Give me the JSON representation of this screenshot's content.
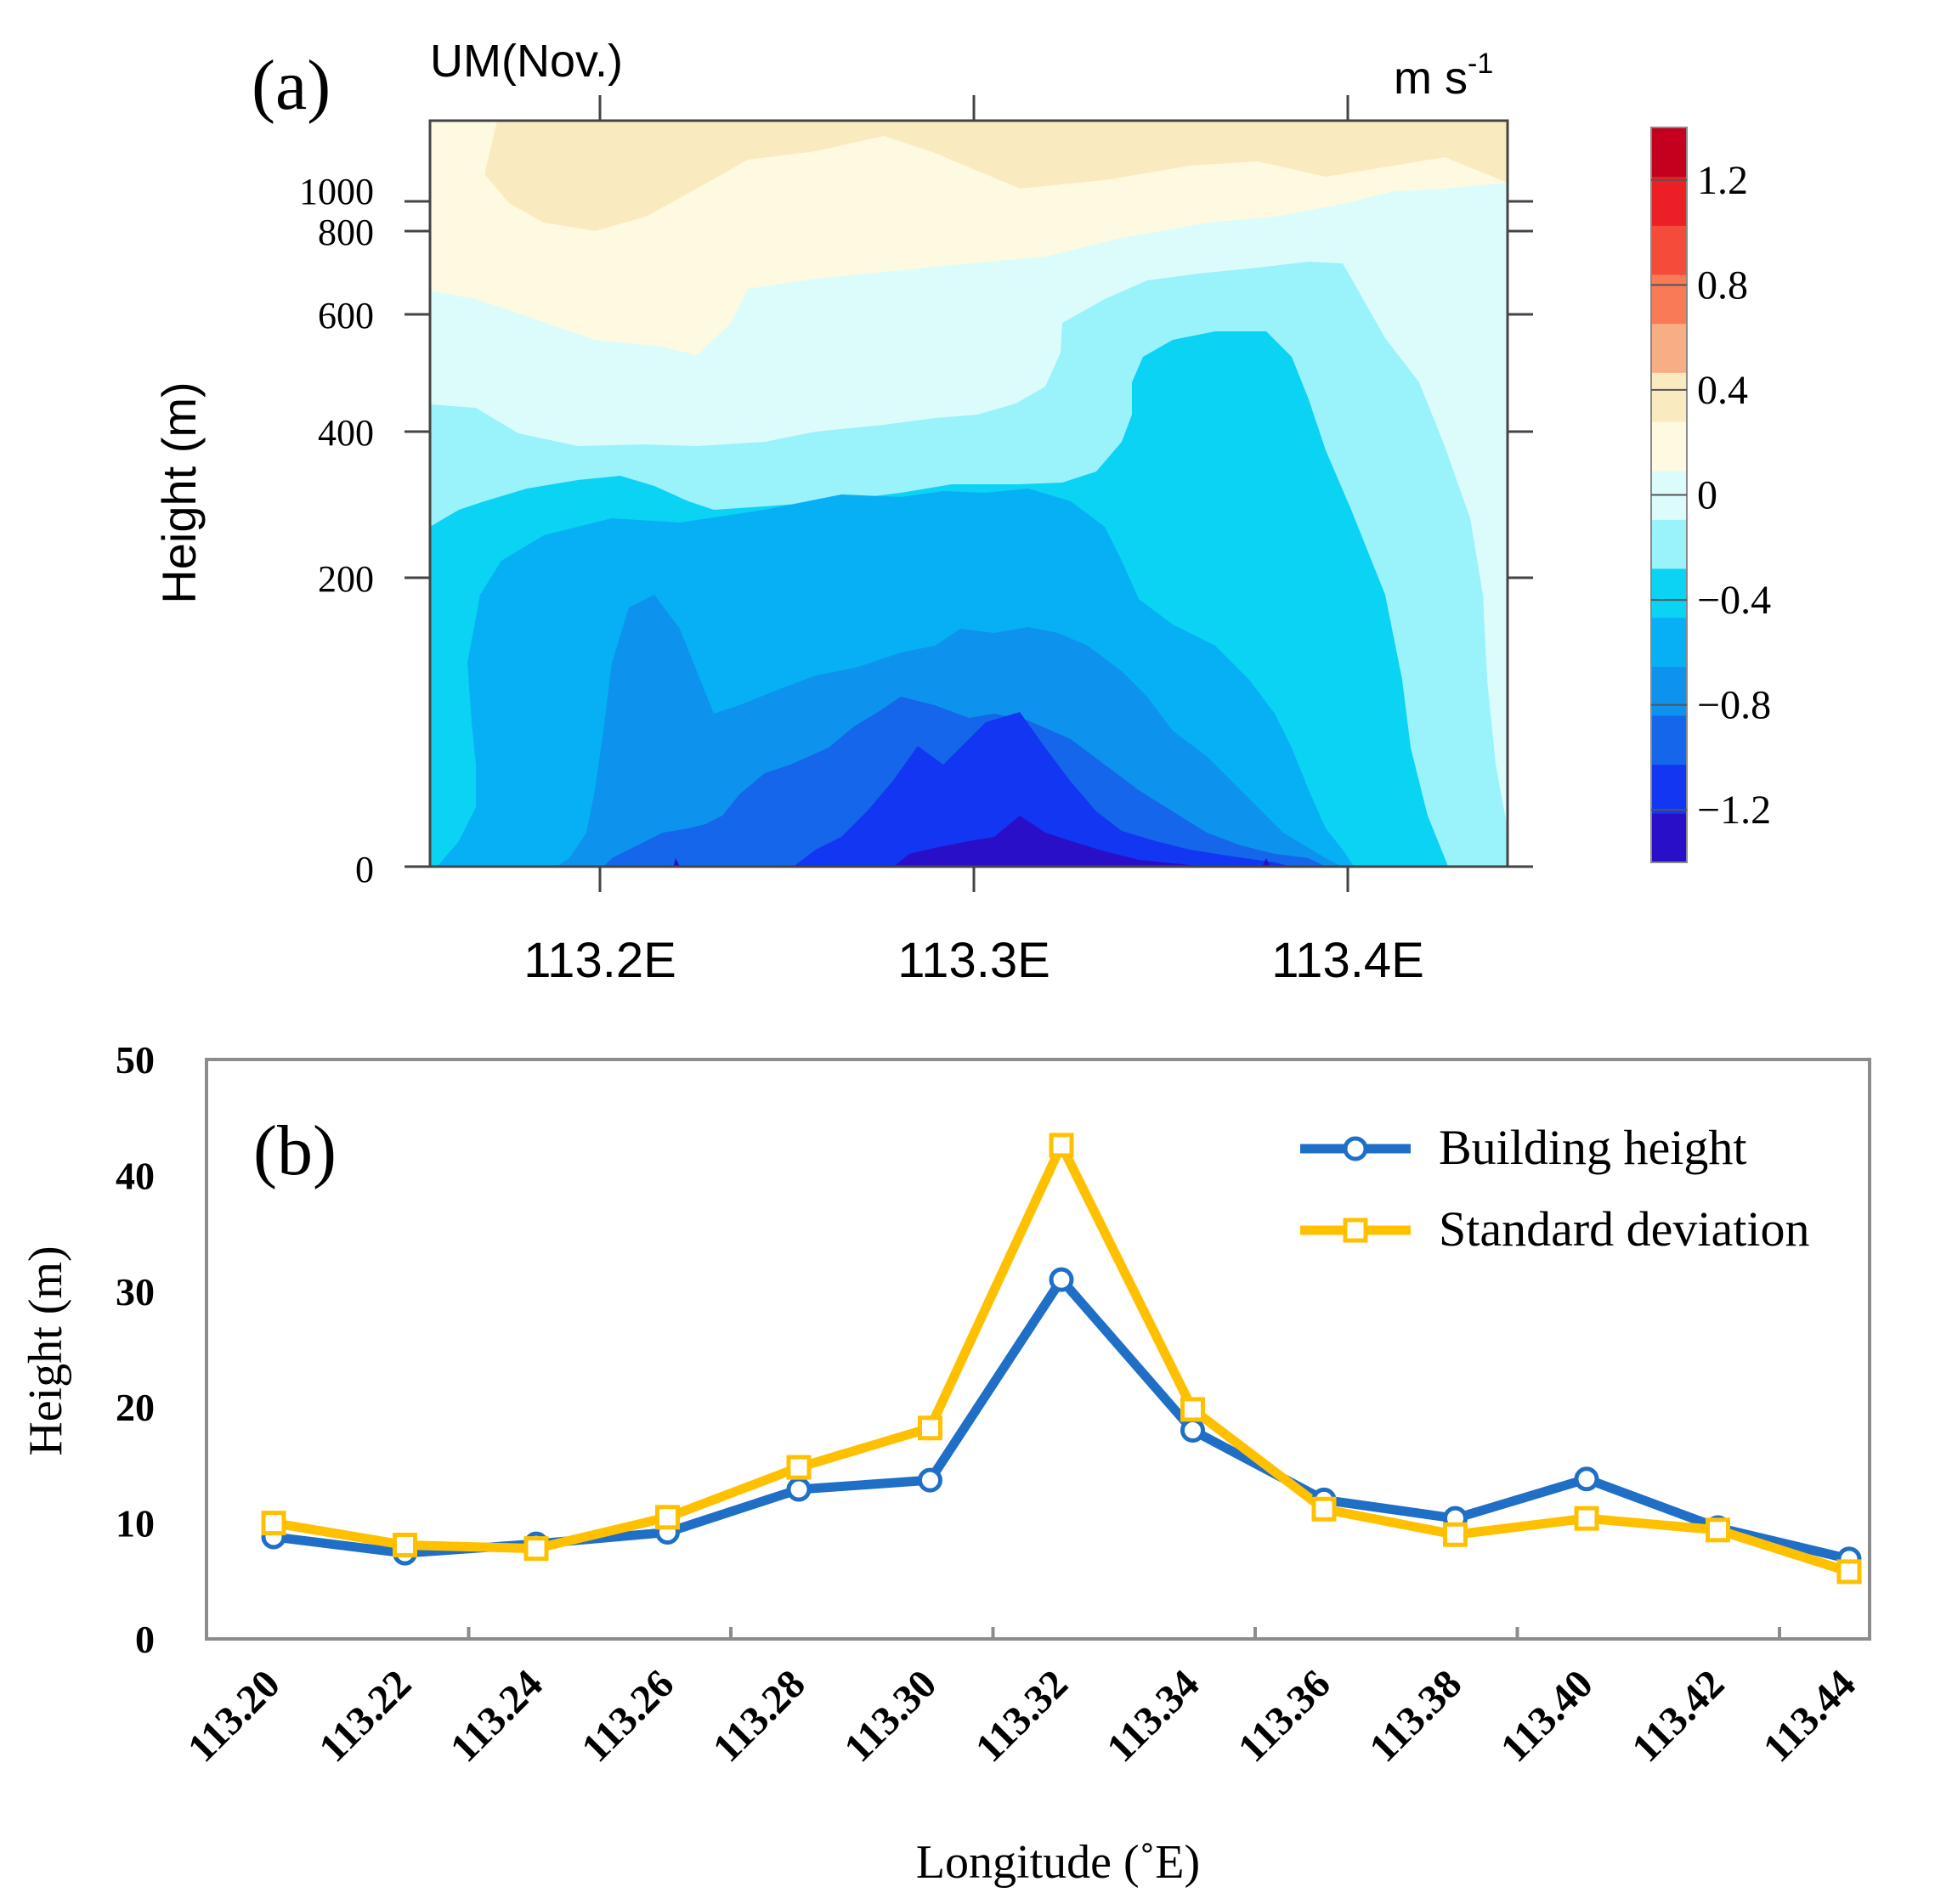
{
  "chart_data": [
    {
      "panel": "(a)",
      "type": "heatmap",
      "subtype": "filled-contour",
      "title_left": "UM(Nov.)",
      "title_right": "m s",
      "title_right_exponent": "-1",
      "ylabel": "Height (m)",
      "xlabel": "",
      "x_ticks": [
        113.2,
        113.3,
        113.4
      ],
      "x_tick_labels": [
        "113.2E",
        "113.3E",
        "113.4E"
      ],
      "xlim": [
        113.155,
        113.445
      ],
      "y_ticks": [
        0,
        200,
        400,
        600,
        800,
        1000
      ],
      "y_tick_labels": [
        "0",
        "200",
        "400",
        "600",
        "800",
        "1000"
      ],
      "ylim": [
        0,
        1200
      ],
      "y_scale": "stretched",
      "colorbar": {
        "levels": [
          -1.4,
          -1.2,
          -1.0,
          -0.8,
          -0.6,
          -0.4,
          -0.2,
          0,
          0.2,
          0.4,
          0.6,
          0.8,
          1.0,
          1.2,
          1.4
        ],
        "colors": [
          "#2a0fc9",
          "#1236f2",
          "#1566ea",
          "#0d93ee",
          "#07b0f5",
          "#0ad3f4",
          "#9af2fb",
          "#dcfcfb",
          "#fefae1",
          "#faeac0",
          "#f7ae84",
          "#f87a57",
          "#f54b3b",
          "#ec1f24",
          "#c4001e"
        ],
        "tick_labels": [
          "1.2",
          "0.8",
          "0.4",
          "0",
          "−0.4",
          "−0.8",
          "−1.2"
        ],
        "tick_values": [
          1.2,
          0.8,
          0.4,
          0,
          -0.4,
          -0.8,
          -1.2
        ]
      },
      "field_summary": "Wind speed anomaly field: near zero to slightly positive above ~900 m, decreasing downward to a minimum below -1.2 m/s near the surface around 113.30-113.32E; boundary layer anomaly deepest (~550 m) near 113.36E."
    },
    {
      "panel": "(b)",
      "type": "line",
      "ylabel": "Height (m)",
      "xlabel": "Longitude (˚E)",
      "ylim": [
        0,
        50
      ],
      "y_ticks": [
        0,
        10,
        20,
        30,
        40,
        50
      ],
      "categories": [
        "113.20",
        "113.22",
        "113.24",
        "113.26",
        "113.28",
        "113.30",
        "113.32",
        "113.34",
        "113.36",
        "113.38",
        "113.40",
        "113.42",
        "113.44"
      ],
      "legend_position": "top-right",
      "series": [
        {
          "name": "Building height",
          "color": "#1f6fc6",
          "marker": "circle",
          "values": [
            8.8,
            7.4,
            8.2,
            9.2,
            12.9,
            13.7,
            31.0,
            18.0,
            12.0,
            10.4,
            13.8,
            9.6,
            6.9
          ]
        },
        {
          "name": "Standard deviation",
          "color": "#ffc000",
          "marker": "square",
          "values": [
            10.0,
            8.1,
            7.8,
            10.5,
            14.8,
            18.2,
            42.6,
            19.8,
            11.2,
            9.0,
            10.4,
            9.4,
            5.8
          ]
        }
      ]
    }
  ]
}
